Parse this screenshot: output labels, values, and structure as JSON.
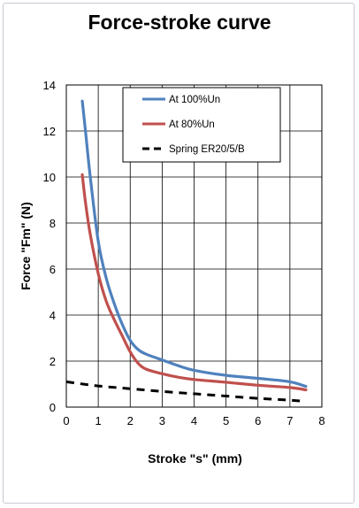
{
  "chart_data": {
    "type": "line",
    "title": "Force-stroke curve",
    "xlabel": "Stroke \"s\" (mm)",
    "ylabel": "Force  \"Fm\" (N)",
    "xlim": [
      0,
      8
    ],
    "ylim": [
      0,
      14
    ],
    "xticks": [
      "0",
      "1",
      "2",
      "3",
      "4",
      "5",
      "6",
      "7",
      "8"
    ],
    "yticks": [
      "0",
      "2",
      "4",
      "6",
      "8",
      "10",
      "12",
      "14"
    ],
    "grid": true,
    "legend_position": "top-right",
    "series": [
      {
        "name": "At 100%Un",
        "color": "#4f81bd",
        "style": "solid",
        "points": [
          [
            0.5,
            13.3
          ],
          [
            0.6,
            12.0
          ],
          [
            0.75,
            10.0
          ],
          [
            1.0,
            7.2
          ],
          [
            1.25,
            5.6
          ],
          [
            1.5,
            4.5
          ],
          [
            1.75,
            3.6
          ],
          [
            2.0,
            2.9
          ],
          [
            2.25,
            2.5
          ],
          [
            2.5,
            2.3
          ],
          [
            3.0,
            2.05
          ],
          [
            3.5,
            1.8
          ],
          [
            4.0,
            1.6
          ],
          [
            5.0,
            1.38
          ],
          [
            6.0,
            1.25
          ],
          [
            7.0,
            1.1
          ],
          [
            7.5,
            0.9
          ]
        ]
      },
      {
        "name": "At 80%Un",
        "color": "#c0504d",
        "style": "solid",
        "points": [
          [
            0.5,
            10.1
          ],
          [
            0.6,
            8.9
          ],
          [
            0.75,
            7.5
          ],
          [
            1.0,
            5.8
          ],
          [
            1.25,
            4.6
          ],
          [
            1.5,
            3.8
          ],
          [
            1.75,
            3.1
          ],
          [
            2.0,
            2.4
          ],
          [
            2.25,
            1.9
          ],
          [
            2.5,
            1.65
          ],
          [
            3.0,
            1.45
          ],
          [
            3.5,
            1.3
          ],
          [
            4.0,
            1.2
          ],
          [
            5.0,
            1.08
          ],
          [
            6.0,
            0.95
          ],
          [
            7.0,
            0.85
          ],
          [
            7.5,
            0.75
          ]
        ]
      },
      {
        "name": "Spring ER20/5/B",
        "color": "#000000",
        "style": "dashed",
        "points": [
          [
            0.0,
            1.1
          ],
          [
            1.0,
            0.92
          ],
          [
            2.0,
            0.8
          ],
          [
            3.0,
            0.68
          ],
          [
            4.0,
            0.58
          ],
          [
            5.0,
            0.48
          ],
          [
            6.0,
            0.38
          ],
          [
            7.0,
            0.3
          ],
          [
            7.5,
            0.25
          ]
        ]
      }
    ]
  }
}
